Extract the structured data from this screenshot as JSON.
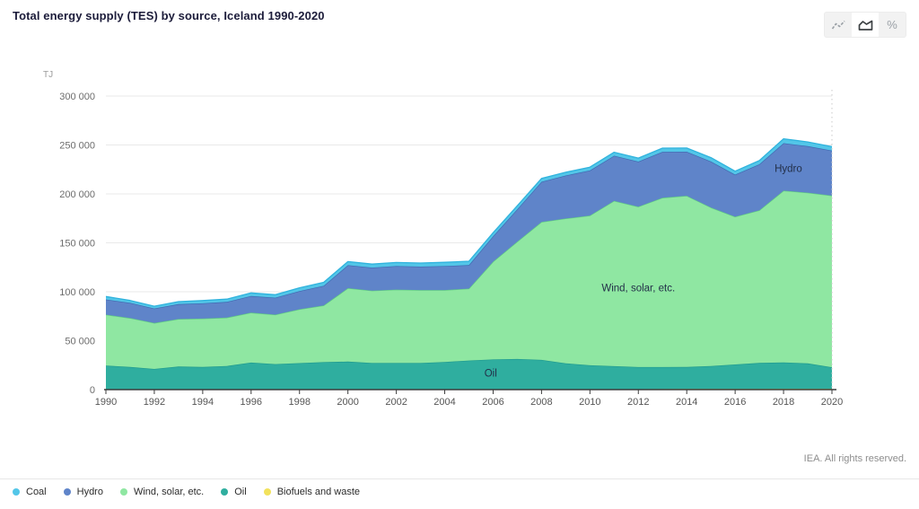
{
  "header": {
    "title": "Total energy supply (TES) by source, Iceland 1990-2020"
  },
  "controls": {
    "active_view": "area",
    "views": [
      "line",
      "area",
      "percent"
    ],
    "percent_label": "%"
  },
  "footer": {
    "copyright": "IEA. All rights reserved."
  },
  "chart_data": {
    "type": "area",
    "stacked": true,
    "title": "Total energy supply (TES) by source, Iceland 1990-2020",
    "unit": "TJ",
    "xlabel": "",
    "ylabel": "TJ",
    "grid": true,
    "legend_position": "bottom",
    "x": [
      1990,
      1991,
      1992,
      1993,
      1994,
      1995,
      1996,
      1997,
      1998,
      1999,
      2000,
      2001,
      2002,
      2003,
      2004,
      2005,
      2006,
      2007,
      2008,
      2009,
      2010,
      2011,
      2012,
      2013,
      2014,
      2015,
      2016,
      2017,
      2018,
      2019,
      2020
    ],
    "xticks": [
      1990,
      1992,
      1994,
      1996,
      1998,
      2000,
      2002,
      2004,
      2006,
      2008,
      2010,
      2012,
      2014,
      2016,
      2018,
      2020
    ],
    "ylim": [
      0,
      300000
    ],
    "yticks": [
      0,
      50000,
      100000,
      150000,
      200000,
      250000,
      300000
    ],
    "ytick_labels": [
      "0",
      "50 000",
      "100 000",
      "150 000",
      "200 000",
      "250 000",
      "300 000"
    ],
    "stack_order": [
      "biofuels",
      "oil",
      "wind_solar",
      "hydro",
      "coal"
    ],
    "end_marker_year": 2020,
    "series": [
      {
        "key": "coal",
        "name": "Coal",
        "color": "#53c6e8",
        "stroke": "#2fb3dd",
        "values": [
          3000,
          2500,
          2300,
          2600,
          2800,
          2900,
          3200,
          3100,
          3400,
          3500,
          3700,
          3600,
          3700,
          3700,
          3800,
          3900,
          3600,
          3600,
          3400,
          3300,
          3400,
          3600,
          3600,
          3700,
          3800,
          3900,
          3500,
          3800,
          4500,
          4300,
          4000
        ]
      },
      {
        "key": "hydro",
        "name": "Hydro",
        "color": "#5f84c9",
        "stroke": "#3f68b0",
        "values": [
          15500,
          15500,
          14800,
          15200,
          15600,
          16000,
          17000,
          17300,
          18500,
          20000,
          23500,
          23500,
          24000,
          24000,
          24500,
          24000,
          26000,
          33000,
          41000,
          44000,
          46000,
          46000,
          46000,
          47000,
          45000,
          47000,
          43000,
          47000,
          48500,
          47500,
          46000
        ]
      },
      {
        "key": "wind_solar",
        "name": "Wind, solar, etc.",
        "color": "#8fe7a2",
        "stroke": "#5ecb81",
        "values": [
          52000,
          50000,
          47000,
          48500,
          49500,
          49500,
          51000,
          50500,
          55000,
          58000,
          75000,
          74000,
          75000,
          74500,
          73500,
          73500,
          100000,
          120000,
          141000,
          148000,
          153000,
          169000,
          164000,
          173000,
          175000,
          162000,
          151000,
          156000,
          175500,
          174500,
          175500
        ]
      },
      {
        "key": "oil",
        "name": "Oil",
        "color": "#2fae9f",
        "stroke": "#1f9a8f",
        "values": [
          24500,
          23000,
          21000,
          23500,
          23000,
          24000,
          27500,
          26000,
          27000,
          28000,
          28500,
          27000,
          27000,
          27000,
          28000,
          29500,
          30500,
          31000,
          30000,
          26500,
          24500,
          23500,
          22500,
          22500,
          22500,
          23500,
          25000,
          26500,
          27000,
          26000,
          22000
        ]
      },
      {
        "key": "biofuels",
        "name": "Biofuels and waste",
        "color": "#f2e25c",
        "stroke": "#e3d13e",
        "values": [
          100,
          100,
          100,
          100,
          100,
          100,
          100,
          100,
          100,
          100,
          150,
          150,
          200,
          200,
          250,
          250,
          300,
          300,
          350,
          350,
          400,
          450,
          500,
          550,
          600,
          650,
          700,
          750,
          800,
          800,
          800
        ]
      }
    ],
    "annotations": [
      {
        "text": "Hydro",
        "year": 2018.2,
        "tj": 226000
      },
      {
        "text": "Wind, solar, etc.",
        "year": 2012.0,
        "tj": 104000
      },
      {
        "text": "Oil",
        "year": 2005.9,
        "tj": 17000
      }
    ]
  }
}
